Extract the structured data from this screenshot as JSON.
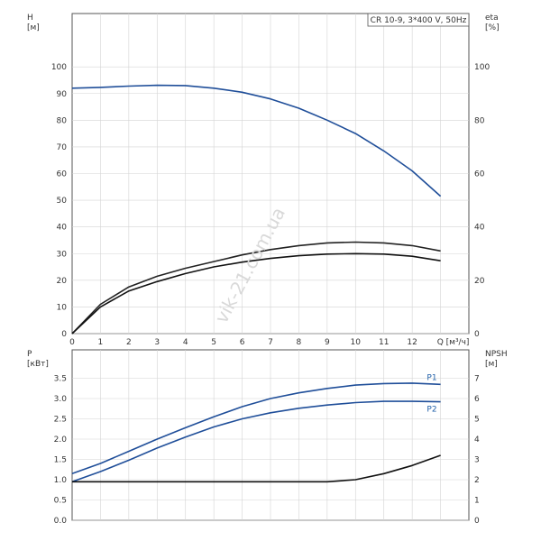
{
  "watermark": "vik-21.com.ua",
  "chart_data": [
    {
      "type": "line",
      "panel": "top",
      "title": "CR 10-9, 3*400 V, 50Hz",
      "xlabel": "Q [м³/ч]",
      "ylabel_left": "H\n[м]",
      "ylabel_right": "eta\n[%]",
      "xlim": [
        0,
        14
      ],
      "ylim_left": [
        0,
        120
      ],
      "ylim_right": [
        0,
        120
      ],
      "x_ticks": [
        0,
        1,
        2,
        3,
        4,
        5,
        6,
        7,
        8,
        9,
        10,
        11,
        12
      ],
      "y_ticks_left": [
        0,
        10,
        20,
        30,
        40,
        50,
        60,
        70,
        80,
        90,
        100
      ],
      "y_ticks_right": [
        0,
        20,
        40,
        60,
        80,
        100
      ],
      "grid": true,
      "series": [
        {
          "name": "",
          "axis": "left",
          "color": "#1f4e99",
          "x": [
            0,
            1,
            2,
            3,
            4,
            5,
            6,
            7,
            8,
            9,
            10,
            11,
            12,
            13
          ],
          "values": [
            92,
            92.3,
            92.8,
            93.1,
            93,
            92,
            90.5,
            88,
            84.5,
            80,
            75,
            68.5,
            61,
            51.5
          ]
        },
        {
          "name": "",
          "axis": "left",
          "color": "#222222",
          "x": [
            0,
            1,
            2,
            3,
            4,
            5,
            6,
            7,
            8,
            9,
            10,
            11,
            12,
            13
          ],
          "values": [
            0,
            11,
            17.5,
            21.5,
            24.5,
            27,
            29.5,
            31.5,
            33,
            34,
            34.3,
            34,
            33,
            31
          ]
        },
        {
          "name": "",
          "axis": "left",
          "color": "#111111",
          "x": [
            0,
            1,
            2,
            3,
            4,
            5,
            6,
            7,
            8,
            9,
            10,
            11,
            12,
            13
          ],
          "values": [
            0,
            10,
            16,
            19.5,
            22.5,
            25,
            26.8,
            28.2,
            29.2,
            29.8,
            30,
            29.8,
            29,
            27.3
          ]
        }
      ]
    },
    {
      "type": "line",
      "panel": "bottom",
      "xlabel": "",
      "ylabel_left": "P\n[кВт]",
      "ylabel_right": "NPSH\n[м]",
      "xlim": [
        0,
        14
      ],
      "ylim_left": [
        0,
        4.2
      ],
      "ylim_right": [
        0,
        8.4
      ],
      "y_ticks_left": [
        "0.0",
        "0.5",
        "1.0",
        "1.5",
        "2.0",
        "2.5",
        "3.0",
        "3.5"
      ],
      "y_ticks_right": [
        0,
        1,
        2,
        3,
        4,
        5,
        6,
        7
      ],
      "grid": true,
      "series": [
        {
          "name": "P1",
          "axis": "left",
          "color": "#1f4e99",
          "x": [
            0,
            1,
            2,
            3,
            4,
            5,
            6,
            7,
            8,
            9,
            10,
            11,
            12,
            13
          ],
          "values": [
            1.15,
            1.4,
            1.7,
            2.0,
            2.28,
            2.55,
            2.8,
            3.0,
            3.14,
            3.25,
            3.33,
            3.37,
            3.38,
            3.35
          ]
        },
        {
          "name": "P2",
          "axis": "left",
          "color": "#1f4e99",
          "x": [
            0,
            1,
            2,
            3,
            4,
            5,
            6,
            7,
            8,
            9,
            10,
            11,
            12,
            13
          ],
          "values": [
            0.95,
            1.2,
            1.48,
            1.78,
            2.05,
            2.3,
            2.5,
            2.65,
            2.76,
            2.84,
            2.9,
            2.93,
            2.93,
            2.92
          ]
        },
        {
          "name": "",
          "axis": "right",
          "color": "#111111",
          "x": [
            0,
            1,
            2,
            3,
            4,
            5,
            6,
            7,
            8,
            9,
            10,
            11,
            12,
            13
          ],
          "values": [
            1.9,
            1.9,
            1.9,
            1.9,
            1.9,
            1.9,
            1.9,
            1.9,
            1.9,
            1.9,
            2.0,
            2.3,
            2.7,
            3.2
          ]
        }
      ]
    }
  ]
}
